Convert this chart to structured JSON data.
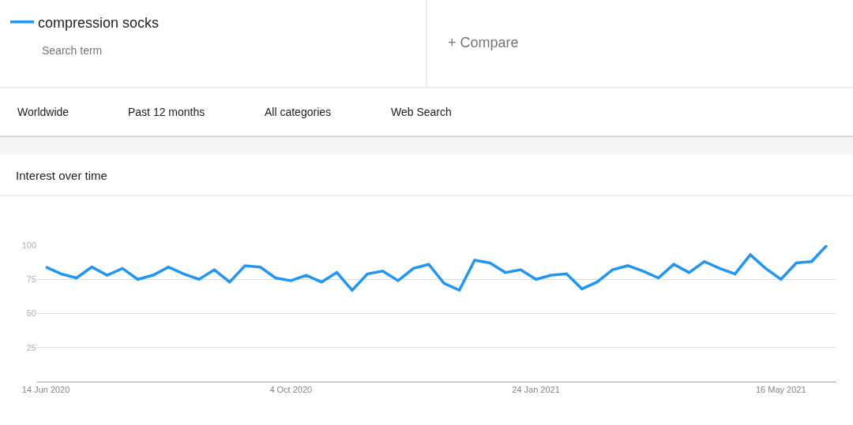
{
  "chart_data": {
    "type": "line",
    "title": "Interest over time",
    "subtitle": "Search term",
    "annotations": [
      "+ Compare",
      "Worldwide",
      "Past 12 months",
      "All categories",
      "Web Search"
    ],
    "x": [
      "2020-06-14",
      "2020-06-21",
      "2020-06-28",
      "2020-07-05",
      "2020-07-12",
      "2020-07-19",
      "2020-07-26",
      "2020-08-02",
      "2020-08-09",
      "2020-08-16",
      "2020-08-23",
      "2020-08-30",
      "2020-09-06",
      "2020-09-13",
      "2020-09-20",
      "2020-09-27",
      "2020-10-04",
      "2020-10-11",
      "2020-10-18",
      "2020-10-25",
      "2020-11-01",
      "2020-11-08",
      "2020-11-15",
      "2020-11-22",
      "2020-11-29",
      "2020-12-06",
      "2020-12-13",
      "2020-12-20",
      "2020-12-27",
      "2021-01-03",
      "2021-01-10",
      "2021-01-17",
      "2021-01-24",
      "2021-01-31",
      "2021-02-07",
      "2021-02-14",
      "2021-02-21",
      "2021-02-28",
      "2021-03-07",
      "2021-03-14",
      "2021-03-21",
      "2021-03-28",
      "2021-04-04",
      "2021-04-11",
      "2021-04-18",
      "2021-04-25",
      "2021-05-02",
      "2021-05-09",
      "2021-05-16",
      "2021-05-23",
      "2021-05-30",
      "2021-06-06"
    ],
    "series": [
      {
        "name": "compression socks",
        "color": "#2196f3",
        "values": [
          84,
          79,
          76,
          84,
          78,
          83,
          75,
          78,
          84,
          79,
          75,
          82,
          73,
          85,
          84,
          76,
          74,
          78,
          73,
          80,
          67,
          79,
          81,
          74,
          83,
          86,
          72,
          67,
          89,
          87,
          80,
          82,
          75,
          78,
          79,
          68,
          73,
          82,
          85,
          81,
          76,
          86,
          80,
          88,
          83,
          79,
          93,
          83,
          75,
          87,
          88,
          100
        ]
      }
    ],
    "xlim": [
      "2020-06-10",
      "2021-06-10"
    ],
    "xticks": [
      {
        "value": "2020-06-14",
        "label": "14 Jun 2020"
      },
      {
        "value": "2020-10-04",
        "label": "4 Oct 2020"
      },
      {
        "value": "2021-01-24",
        "label": "24 Jan 2021"
      },
      {
        "value": "2021-05-16",
        "label": "16 May 2021"
      }
    ],
    "ylim": [
      0,
      100
    ],
    "yticks": [
      25,
      50,
      75,
      100
    ],
    "grid": "y",
    "legend": "top left",
    "marker": "none",
    "line_style": "solid"
  }
}
